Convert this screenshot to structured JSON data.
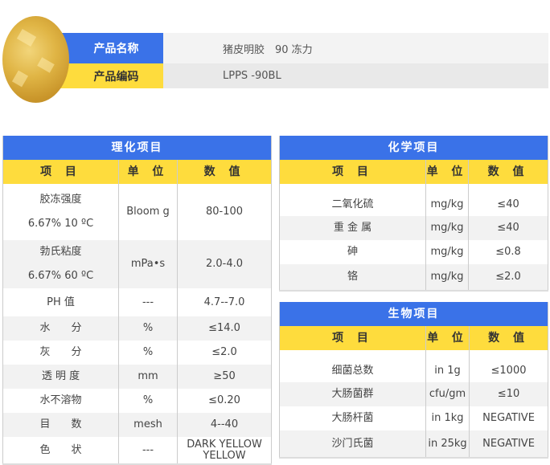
{
  "product": {
    "name_label": "产品名称",
    "name_value": "猪皮明胶　90 冻力",
    "code_label": "产品编码",
    "code_value": "LPPS -90BL"
  },
  "colors": {
    "blue": "#3a72e8",
    "yellow": "#fedc3d"
  },
  "physchem": {
    "title": "理化项目",
    "headers": [
      "项 目",
      "单 位",
      "数 值"
    ],
    "rows": [
      [
        "胶冻强度\n6.67% 10 ºC",
        "Bloom g",
        "80-100"
      ],
      [
        "勃氏粘度\n6.67% 60 ºC",
        "mPa•s",
        "2.0-4.0"
      ],
      [
        "PH 值",
        "---",
        "4.7--7.0"
      ],
      [
        "水　　分",
        "%",
        "≤14.0"
      ],
      [
        "灰　　分",
        "%",
        "≤2.0"
      ],
      [
        "透 明 度",
        "mm",
        "≥50"
      ],
      [
        "水不溶物",
        "%",
        "≤0.20"
      ],
      [
        "目　　数",
        "mesh",
        "4--40"
      ],
      [
        "色　　状",
        "---",
        "DARK YELLOW\nYELLOW"
      ]
    ]
  },
  "chem": {
    "title": "化学项目",
    "headers": [
      "项 目",
      "单 位",
      "数 值"
    ],
    "rows": [
      [
        "二氧化硫",
        "mg/kg",
        "≤40"
      ],
      [
        "重 金 属",
        "mg/kg",
        "≤40"
      ],
      [
        "砷",
        "mg/kg",
        "≤0.8"
      ],
      [
        "铬",
        "mg/kg",
        "≤2.0"
      ]
    ]
  },
  "bio": {
    "title": "生物项目",
    "headers": [
      "项 目",
      "单 位",
      "数 值"
    ],
    "rows": [
      [
        "细菌总数",
        "in 1g",
        "≤1000"
      ],
      [
        "大肠菌群",
        "cfu/gm",
        "≤10"
      ],
      [
        "大肠杆菌",
        "in 1kg",
        "NEGATIVE"
      ],
      [
        "沙门氏菌",
        "in 25kg",
        "NEGATIVE"
      ]
    ]
  }
}
